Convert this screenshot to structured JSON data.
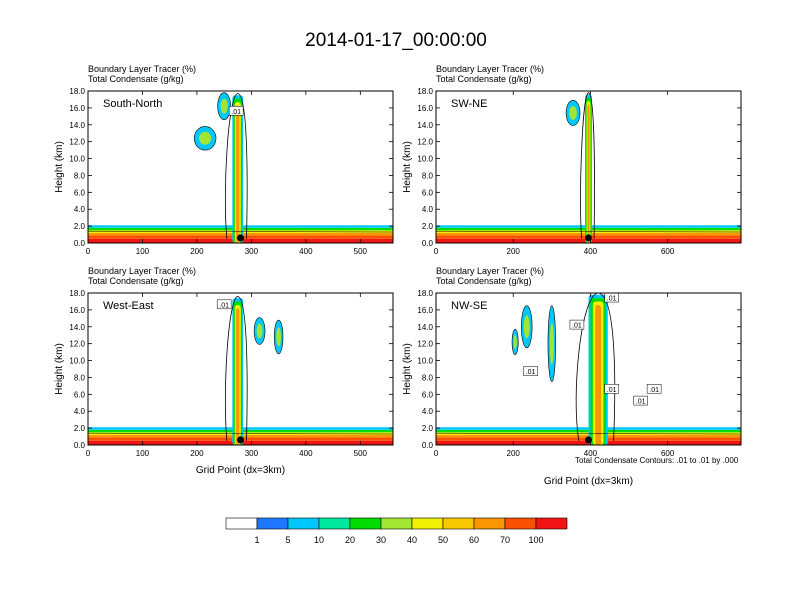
{
  "title": "2014-01-17_00:00:00",
  "footnote": "Total Condensate Contours: .01 to .01 by .000",
  "chart_data": {
    "type": "heatmap",
    "variables": [
      {
        "name": "Boundary Layer Tracer",
        "units": "(%)",
        "style": "filled"
      },
      {
        "name": "Total Condensate",
        "units": "(g/kg)",
        "style": "contour"
      }
    ],
    "panels": [
      {
        "label": "South-North",
        "subtitle1": "Boundary Layer Tracer   (%)",
        "subtitle2": "Total Condensate   (g/kg)",
        "xlim": [
          0,
          560
        ],
        "xticks": [
          "0",
          "100",
          "200",
          "300",
          "400",
          "500"
        ],
        "xtick_values": [
          0,
          100,
          200,
          300,
          400,
          500
        ],
        "ylim": [
          0,
          18
        ],
        "yticks": [
          "0.0",
          "2.0",
          "4.0",
          "6.0",
          "8.0",
          "10.0",
          "12.0",
          "14.0",
          "16.0",
          "18.0"
        ],
        "ylabel": "Height (km)",
        "xlabel": "",
        "marker_x": 280,
        "plume": {
          "x": 275,
          "width": 20,
          "top": 17.5
        },
        "blobs": [
          {
            "x": 215,
            "y": 12.4,
            "rx": 20,
            "ry": 1.4
          },
          {
            "x": 250,
            "y": 16.2,
            "rx": 12,
            "ry": 1.6
          }
        ],
        "contour_labels": [
          {
            "x": 272,
            "y": 15.6,
            "text": ".01"
          }
        ]
      },
      {
        "label": "SW-NE",
        "subtitle1": "Boundary Layer Tracer   (%)",
        "subtitle2": "Total Condensate   (g/kg)",
        "xlim": [
          0,
          790
        ],
        "xticks": [
          "0",
          "200",
          "400",
          "600"
        ],
        "xtick_values": [
          0,
          200,
          400,
          600
        ],
        "ylim": [
          0,
          18
        ],
        "yticks": [
          "0.0",
          "2.0",
          "4.0",
          "6.0",
          "8.0",
          "10.0",
          "12.0",
          "14.0",
          "16.0",
          "18.0"
        ],
        "ylabel": "Height (km)",
        "xlabel": "",
        "marker_x": 395,
        "plume": {
          "x": 395,
          "width": 18,
          "top": 17.6
        },
        "blobs": [
          {
            "x": 355,
            "y": 15.4,
            "rx": 18,
            "ry": 1.5
          }
        ],
        "contour_labels": []
      },
      {
        "label": "West-East",
        "subtitle1": "Boundary Layer Tracer   (%)",
        "subtitle2": "Total Condensate   (g/kg)",
        "xlim": [
          0,
          560
        ],
        "xticks": [
          "0",
          "100",
          "200",
          "300",
          "400",
          "500"
        ],
        "xtick_values": [
          0,
          100,
          200,
          300,
          400,
          500
        ],
        "ylim": [
          0,
          18
        ],
        "yticks": [
          "0.0",
          "2.0",
          "4.0",
          "6.0",
          "8.0",
          "10.0",
          "12.0",
          "14.0",
          "16.0",
          "18.0"
        ],
        "ylabel": "Height (km)",
        "xlabel": "Grid Point (dx=3km)",
        "marker_x": 280,
        "plume": {
          "x": 275,
          "width": 20,
          "top": 17.4
        },
        "blobs": [
          {
            "x": 315,
            "y": 13.5,
            "rx": 10,
            "ry": 1.6
          },
          {
            "x": 350,
            "y": 12.8,
            "rx": 8,
            "ry": 2.0
          }
        ],
        "contour_labels": [
          {
            "x": 250,
            "y": 16.6,
            "text": ".01"
          }
        ]
      },
      {
        "label": "NW-SE",
        "subtitle1": "Boundary Layer Tracer   (%)",
        "subtitle2": "Total Condensate   (g/kg)",
        "xlim": [
          0,
          790
        ],
        "xticks": [
          "0",
          "200",
          "400",
          "600"
        ],
        "xtick_values": [
          0,
          200,
          400,
          600
        ],
        "ylim": [
          0,
          18
        ],
        "yticks": [
          "0.0",
          "2.0",
          "4.0",
          "6.0",
          "8.0",
          "10.0",
          "12.0",
          "14.0",
          "16.0",
          "18.0"
        ],
        "ylabel": "Height (km)",
        "xlabel": "Grid Point (dx=3km)",
        "marker_x": 395,
        "plume": {
          "x": 420,
          "width": 50,
          "top": 17.8
        },
        "blobs": [
          {
            "x": 235,
            "y": 14.0,
            "rx": 14,
            "ry": 2.5
          },
          {
            "x": 205,
            "y": 12.2,
            "rx": 8,
            "ry": 1.5
          },
          {
            "x": 300,
            "y": 12.0,
            "rx": 10,
            "ry": 4.5
          }
        ],
        "contour_labels": [
          {
            "x": 365,
            "y": 14.2,
            "text": ".01"
          },
          {
            "x": 455,
            "y": 17.4,
            "text": ".01"
          },
          {
            "x": 245,
            "y": 8.7,
            "text": ".01"
          },
          {
            "x": 455,
            "y": 6.6,
            "text": ".01"
          },
          {
            "x": 530,
            "y": 5.2,
            "text": ".01"
          },
          {
            "x": 565,
            "y": 6.6,
            "text": ".01"
          }
        ]
      }
    ],
    "colorbar": {
      "colors": [
        "#ffffff",
        "#1e78ff",
        "#00c8ff",
        "#00e89e",
        "#00dc00",
        "#a0e632",
        "#f0f000",
        "#fac800",
        "#fa9600",
        "#fa5000",
        "#f01414"
      ],
      "labels": [
        "1",
        "5",
        "10",
        "20",
        "30",
        "40",
        "50",
        "60",
        "70",
        "100"
      ]
    }
  }
}
